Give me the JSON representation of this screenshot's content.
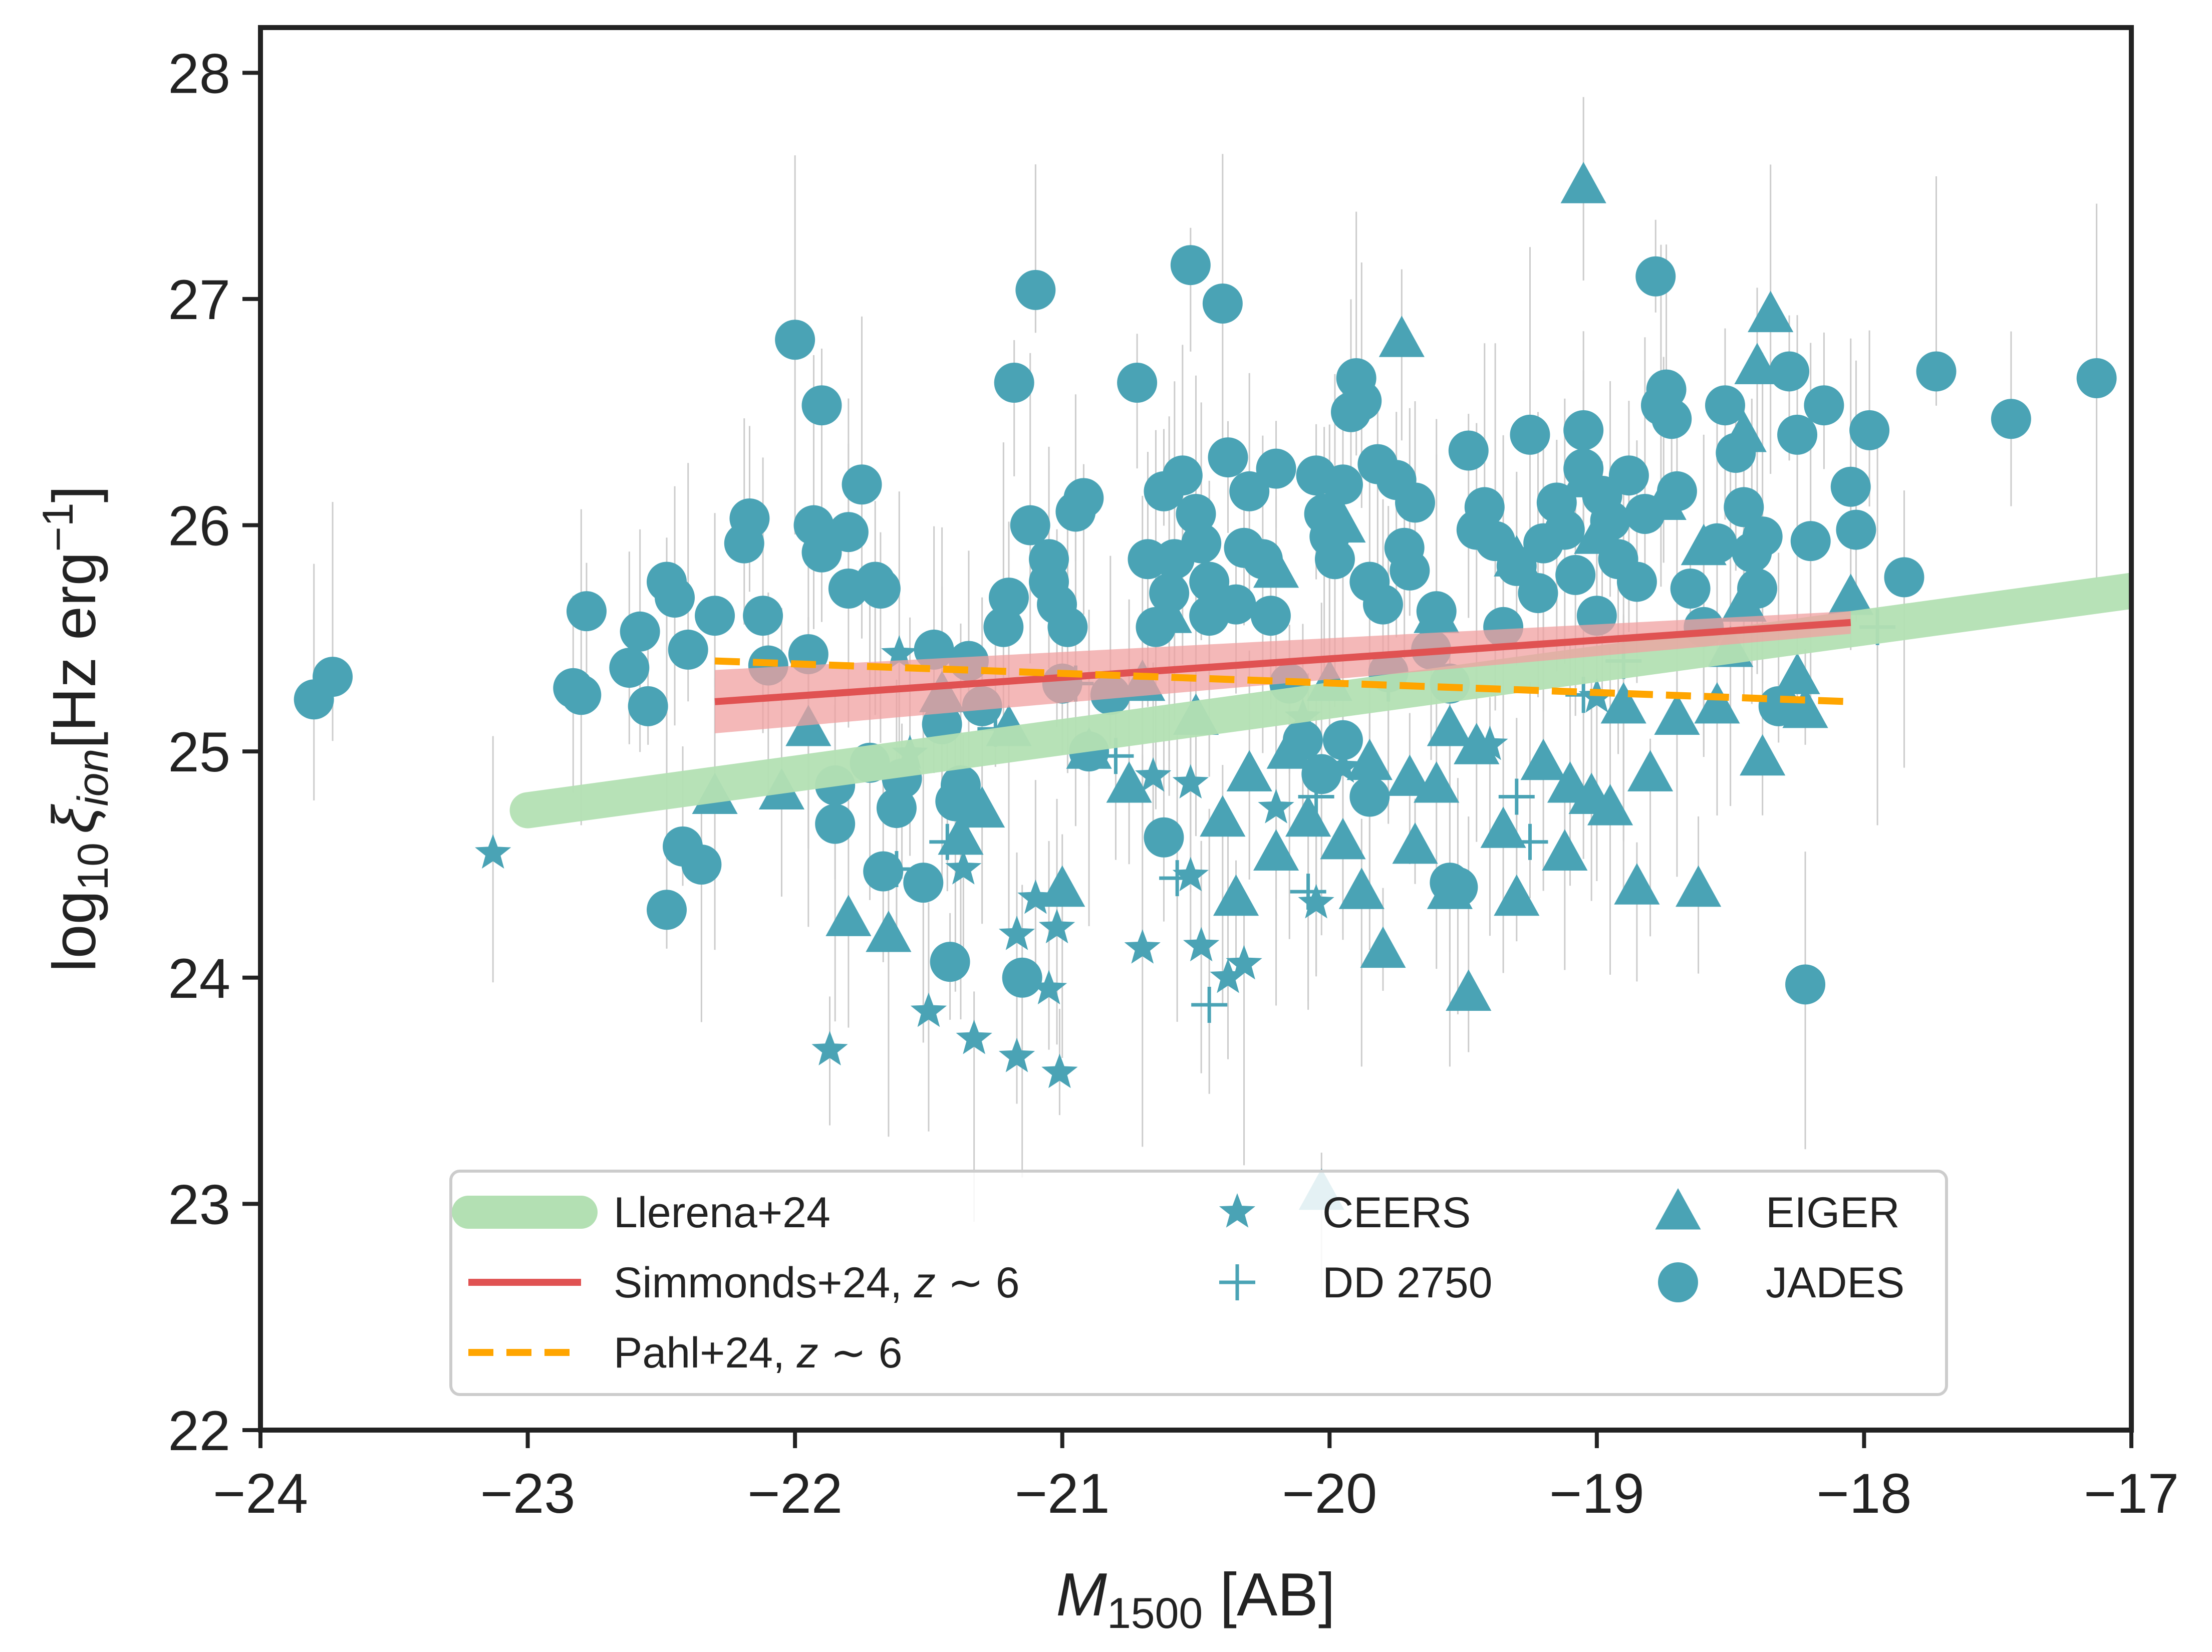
{
  "chart_data": {
    "type": "scatter",
    "xlabel": "M",
    "xlabel_sub": "1500",
    "xlabel_unit": " [AB]",
    "ylabel_prefix": "log",
    "ylabel_prefix_sub": "10",
    "ylabel_symbol": "ξ",
    "ylabel_symbol_sub": "ion",
    "ylabel_unit": "[Hz erg",
    "ylabel_unit_sup": "−1",
    "ylabel_unit_end": "]",
    "xlim": [
      -24,
      -17
    ],
    "ylim": [
      22,
      28.2
    ],
    "xticks": [
      -24,
      -23,
      -22,
      -21,
      -20,
      -19,
      -18,
      -17
    ],
    "xtick_labels": [
      "−24",
      "−23",
      "−22",
      "−21",
      "−20",
      "−19",
      "−18",
      "−17"
    ],
    "yticks": [
      22,
      23,
      24,
      25,
      26,
      27,
      28
    ],
    "ytick_labels": [
      "22",
      "23",
      "24",
      "25",
      "26",
      "27",
      "28"
    ],
    "grid": false,
    "legend_position": "bottom-center",
    "colors": {
      "points": "#4aa3b5",
      "llerena": "#b3e0b3",
      "simmonds": "#e05252",
      "simmonds_band": "#f0a0a0",
      "pahl": "#ffa500",
      "errorbar": "#cccccc",
      "axes": "#222222"
    },
    "lines": [
      {
        "name": "Llerena+24",
        "x": [
          -23.0,
          -17.0
        ],
        "y": [
          24.74,
          25.71
        ]
      },
      {
        "name": "Simmonds+24, z ∼ 6",
        "x": [
          -22.3,
          -18.05
        ],
        "y": [
          25.22,
          25.57
        ],
        "band_lower": [
          25.08,
          25.52
        ],
        "band_upper": [
          25.36,
          25.62
        ]
      },
      {
        "name": "Pahl+24, z ∼ 6",
        "x": [
          -22.3,
          -18.05
        ],
        "y": [
          25.4,
          25.22
        ]
      }
    ],
    "legend": {
      "llerena": "Llerena+24",
      "simmonds_prefix": "Simmonds+24, ",
      "simmonds_z": "z",
      "simmonds_suffix": " ∼ 6",
      "pahl_prefix": "Pahl+24, ",
      "pahl_z": "z",
      "pahl_suffix": " ∼ 6",
      "ceers": "CEERS",
      "dd2750": "DD 2750",
      "eiger": "EIGER",
      "jades": "JADES"
    },
    "series": [
      {
        "name": "CEERS",
        "marker": "star",
        "points": [
          [
            -23.13,
            24.55
          ],
          [
            -21.87,
            23.68
          ],
          [
            -21.5,
            23.85
          ],
          [
            -21.33,
            23.73
          ],
          [
            -21.37,
            24.48
          ],
          [
            -21.17,
            24.19
          ],
          [
            -21.17,
            23.65
          ],
          [
            -21.1,
            24.35
          ],
          [
            -21.05,
            23.95
          ],
          [
            -21.02,
            24.22
          ],
          [
            -21.01,
            23.58
          ],
          [
            -20.7,
            24.13
          ],
          [
            -20.52,
            24.86
          ],
          [
            -20.52,
            24.45
          ],
          [
            -20.48,
            24.14
          ],
          [
            -20.38,
            24.0
          ],
          [
            -20.32,
            24.06
          ],
          [
            -20.05,
            24.33
          ],
          [
            -20.2,
            24.75
          ],
          [
            -19.95,
            24.93
          ],
          [
            -20.1,
            25.15
          ],
          [
            -19.4,
            25.03
          ],
          [
            -19.0,
            25.24
          ],
          [
            -20.66,
            24.89
          ],
          [
            -21.57,
            24.99
          ],
          [
            -21.61,
            25.43
          ]
        ]
      },
      {
        "name": "DD 2750",
        "marker": "plus",
        "points": [
          [
            -21.62,
            24.48
          ],
          [
            -21.43,
            24.6
          ],
          [
            -20.8,
            24.98
          ],
          [
            -20.57,
            24.44
          ],
          [
            -20.45,
            23.88
          ],
          [
            -20.08,
            24.38
          ],
          [
            -20.05,
            24.8
          ],
          [
            -19.78,
            25.3
          ],
          [
            -19.3,
            24.8
          ],
          [
            -19.25,
            24.6
          ],
          [
            -19.05,
            25.25
          ],
          [
            -17.95,
            25.55
          ],
          [
            -18.9,
            25.4
          ],
          [
            -20.95,
            25.3
          ],
          [
            -21.25,
            25.1
          ]
        ]
      },
      {
        "name": "EIGER",
        "marker": "triangle",
        "points": [
          [
            -19.05,
            27.5
          ],
          [
            -19.73,
            26.82
          ],
          [
            -18.35,
            26.93
          ],
          [
            -18.4,
            26.7
          ],
          [
            -18.45,
            26.4
          ],
          [
            -21.8,
            24.26
          ],
          [
            -21.65,
            24.19
          ],
          [
            -21.38,
            24.62
          ],
          [
            -21.3,
            24.74
          ],
          [
            -21.0,
            24.39
          ],
          [
            -20.75,
            24.85
          ],
          [
            -20.35,
            24.35
          ],
          [
            -20.2,
            24.55
          ],
          [
            -20.08,
            24.7
          ],
          [
            -19.88,
            24.38
          ],
          [
            -19.8,
            24.12
          ],
          [
            -19.68,
            24.58
          ],
          [
            -19.55,
            24.38
          ],
          [
            -19.48,
            23.93
          ],
          [
            -19.3,
            24.35
          ],
          [
            -19.12,
            24.55
          ],
          [
            -18.85,
            24.4
          ],
          [
            -18.62,
            24.39
          ],
          [
            -18.38,
            24.97
          ],
          [
            -18.22,
            25.18
          ],
          [
            -18.25,
            25.33
          ],
          [
            -18.05,
            25.68
          ],
          [
            -19.02,
            24.8
          ],
          [
            -18.8,
            24.9
          ],
          [
            -18.7,
            25.15
          ],
          [
            -18.9,
            25.2
          ],
          [
            -19.35,
            24.65
          ],
          [
            -19.45,
            25.02
          ],
          [
            -19.6,
            24.85
          ],
          [
            -19.55,
            25.1
          ],
          [
            -19.7,
            24.88
          ],
          [
            -19.85,
            24.95
          ],
          [
            -19.95,
            24.6
          ],
          [
            -20.15,
            25.0
          ],
          [
            -20.3,
            24.9
          ],
          [
            -20.4,
            24.7
          ],
          [
            -20.5,
            25.15
          ],
          [
            -20.7,
            25.3
          ],
          [
            -21.95,
            25.1
          ],
          [
            -22.05,
            24.82
          ],
          [
            -22.3,
            24.8
          ],
          [
            -21.45,
            25.25
          ],
          [
            -21.2,
            25.1
          ],
          [
            -20.9,
            25.0
          ],
          [
            -20.0,
            25.3
          ],
          [
            -19.2,
            24.95
          ],
          [
            -19.1,
            24.85
          ],
          [
            -18.95,
            24.75
          ],
          [
            -18.55,
            25.2
          ],
          [
            -18.5,
            25.45
          ],
          [
            -18.45,
            25.65
          ],
          [
            -18.6,
            25.9
          ],
          [
            -18.75,
            26.1
          ],
          [
            -19.05,
            26.2
          ],
          [
            -19.0,
            25.95
          ],
          [
            -19.3,
            25.85
          ],
          [
            -19.6,
            25.6
          ],
          [
            -20.03,
            23.05
          ],
          [
            -20.6,
            25.6
          ],
          [
            -20.2,
            25.8
          ],
          [
            -19.95,
            26.0
          ]
        ]
      },
      {
        "name": "JADES",
        "marker": "circle",
        "points": [
          [
            -23.8,
            25.23
          ],
          [
            -23.73,
            25.33
          ],
          [
            -22.83,
            25.28
          ],
          [
            -22.8,
            25.25
          ],
          [
            -22.78,
            25.62
          ],
          [
            -22.62,
            25.37
          ],
          [
            -22.58,
            25.53
          ],
          [
            -22.55,
            25.2
          ],
          [
            -22.48,
            25.75
          ],
          [
            -22.45,
            25.68
          ],
          [
            -22.4,
            25.45
          ],
          [
            -22.3,
            25.6
          ],
          [
            -22.42,
            24.58
          ],
          [
            -22.35,
            24.5
          ],
          [
            -22.48,
            24.3
          ],
          [
            -22.19,
            25.92
          ],
          [
            -22.17,
            26.03
          ],
          [
            -22.12,
            25.6
          ],
          [
            -22.1,
            25.38
          ],
          [
            -22.0,
            26.82
          ],
          [
            -21.95,
            25.43
          ],
          [
            -21.93,
            26.0
          ],
          [
            -21.9,
            25.88
          ],
          [
            -21.9,
            26.53
          ],
          [
            -21.85,
            24.68
          ],
          [
            -21.85,
            24.85
          ],
          [
            -21.8,
            25.97
          ],
          [
            -21.8,
            25.72
          ],
          [
            -21.75,
            26.18
          ],
          [
            -21.7,
            25.75
          ],
          [
            -21.68,
            25.72
          ],
          [
            -21.72,
            24.95
          ],
          [
            -21.67,
            24.47
          ],
          [
            -21.62,
            24.75
          ],
          [
            -21.6,
            24.88
          ],
          [
            -21.52,
            24.42
          ],
          [
            -21.48,
            25.45
          ],
          [
            -21.45,
            25.12
          ],
          [
            -21.42,
            24.07
          ],
          [
            -21.4,
            24.78
          ],
          [
            -21.38,
            24.85
          ],
          [
            -21.35,
            25.4
          ],
          [
            -21.3,
            25.2
          ],
          [
            -21.22,
            25.55
          ],
          [
            -21.2,
            25.68
          ],
          [
            -21.18,
            26.63
          ],
          [
            -21.15,
            24.0
          ],
          [
            -21.12,
            26.0
          ],
          [
            -21.1,
            27.04
          ],
          [
            -21.05,
            25.85
          ],
          [
            -21.05,
            25.75
          ],
          [
            -21.02,
            25.65
          ],
          [
            -21.0,
            25.3
          ],
          [
            -20.98,
            25.55
          ],
          [
            -20.95,
            26.06
          ],
          [
            -20.92,
            26.12
          ],
          [
            -20.9,
            25.0
          ],
          [
            -20.82,
            25.25
          ],
          [
            -20.72,
            26.63
          ],
          [
            -20.68,
            25.85
          ],
          [
            -20.65,
            25.55
          ],
          [
            -20.62,
            26.15
          ],
          [
            -20.6,
            25.7
          ],
          [
            -20.58,
            25.85
          ],
          [
            -20.55,
            26.22
          ],
          [
            -20.52,
            27.15
          ],
          [
            -20.5,
            26.05
          ],
          [
            -20.48,
            25.92
          ],
          [
            -20.45,
            25.75
          ],
          [
            -20.45,
            25.6
          ],
          [
            -20.4,
            26.98
          ],
          [
            -20.38,
            26.3
          ],
          [
            -20.35,
            25.65
          ],
          [
            -20.32,
            25.9
          ],
          [
            -20.3,
            26.15
          ],
          [
            -20.25,
            25.85
          ],
          [
            -20.22,
            25.6
          ],
          [
            -20.2,
            26.25
          ],
          [
            -20.15,
            25.3
          ],
          [
            -20.1,
            25.05
          ],
          [
            -20.05,
            26.22
          ],
          [
            -20.02,
            26.05
          ],
          [
            -20.0,
            25.95
          ],
          [
            -19.98,
            25.85
          ],
          [
            -19.95,
            26.18
          ],
          [
            -19.92,
            26.5
          ],
          [
            -19.9,
            26.65
          ],
          [
            -19.88,
            26.55
          ],
          [
            -19.85,
            25.75
          ],
          [
            -19.82,
            26.27
          ],
          [
            -19.8,
            25.65
          ],
          [
            -19.78,
            25.35
          ],
          [
            -19.75,
            26.2
          ],
          [
            -19.72,
            25.9
          ],
          [
            -19.7,
            25.8
          ],
          [
            -19.68,
            26.1
          ],
          [
            -19.62,
            25.45
          ],
          [
            -19.6,
            25.62
          ],
          [
            -19.55,
            25.3
          ],
          [
            -19.52,
            24.4
          ],
          [
            -19.48,
            26.33
          ],
          [
            -19.45,
            25.98
          ],
          [
            -19.42,
            26.08
          ],
          [
            -19.38,
            25.93
          ],
          [
            -19.35,
            25.55
          ],
          [
            -19.3,
            25.82
          ],
          [
            -19.25,
            26.4
          ],
          [
            -19.22,
            25.7
          ],
          [
            -19.2,
            25.92
          ],
          [
            -19.15,
            26.1
          ],
          [
            -19.12,
            25.98
          ],
          [
            -19.08,
            25.78
          ],
          [
            -19.05,
            26.42
          ],
          [
            -19.05,
            26.25
          ],
          [
            -19.0,
            25.6
          ],
          [
            -18.98,
            26.13
          ],
          [
            -18.95,
            26.02
          ],
          [
            -18.92,
            25.85
          ],
          [
            -18.88,
            26.22
          ],
          [
            -18.85,
            25.75
          ],
          [
            -18.82,
            26.05
          ],
          [
            -18.78,
            27.1
          ],
          [
            -18.76,
            26.53
          ],
          [
            -18.74,
            26.6
          ],
          [
            -18.72,
            26.47
          ],
          [
            -18.7,
            26.15
          ],
          [
            -18.65,
            25.72
          ],
          [
            -18.6,
            25.55
          ],
          [
            -18.55,
            25.92
          ],
          [
            -18.52,
            26.53
          ],
          [
            -18.48,
            26.32
          ],
          [
            -18.45,
            26.08
          ],
          [
            -18.42,
            25.88
          ],
          [
            -18.4,
            25.72
          ],
          [
            -18.38,
            25.95
          ],
          [
            -18.32,
            25.2
          ],
          [
            -18.28,
            26.68
          ],
          [
            -18.25,
            26.4
          ],
          [
            -18.22,
            23.97
          ],
          [
            -18.2,
            25.93
          ],
          [
            -18.15,
            26.53
          ],
          [
            -18.05,
            26.17
          ],
          [
            -18.03,
            25.98
          ],
          [
            -17.98,
            26.42
          ],
          [
            -17.85,
            25.77
          ],
          [
            -17.73,
            26.68
          ],
          [
            -17.45,
            26.47
          ],
          [
            -17.13,
            26.65
          ],
          [
            -19.55,
            24.42
          ],
          [
            -19.85,
            24.8
          ],
          [
            -19.95,
            25.05
          ],
          [
            -20.62,
            24.62
          ],
          [
            -20.03,
            24.9
          ]
        ]
      }
    ]
  }
}
